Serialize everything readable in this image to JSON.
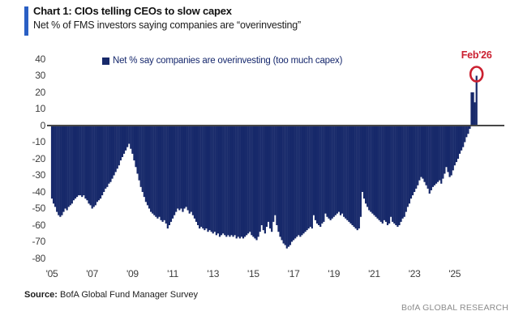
{
  "header": {
    "title": "Chart 1: CIOs telling CEOs to slow capex",
    "subtitle": "Net % of FMS investors saying companies are “overinvesting”"
  },
  "legend": {
    "label": "Net % say companies are overinvesting (too much capex)"
  },
  "annotation": {
    "label": "Feb'26"
  },
  "footer": {
    "source_label": "Source:",
    "source_text": " BofA Global Fund Manager Survey",
    "brand": "BofA GLOBAL RESEARCH"
  },
  "colors": {
    "bar": "#17296a",
    "accent": "#2a5fc4",
    "annotation": "#cb2030",
    "zero_line": "#474747",
    "axis_text": "#3d3d3d"
  },
  "chart_data": {
    "type": "bar",
    "title": "Chart 1: CIOs telling CEOs to slow capex",
    "subtitle": "Net % of FMS investors saying companies are “overinvesting”",
    "series_name": "Net % say companies are overinvesting (too much capex)",
    "frequency": "monthly",
    "start": "2005-01",
    "end": "2026-02",
    "ylim": [
      -80,
      40
    ],
    "grid": false,
    "legend_position": "top",
    "y_ticks": [
      40,
      30,
      20,
      10,
      0,
      -10,
      -20,
      -30,
      -40,
      -50,
      -60,
      -70,
      -80
    ],
    "x_ticks": [
      "'05",
      "'07",
      "'09",
      "'11",
      "'13",
      "'15",
      "'17",
      "'19",
      "'21",
      "'23",
      "'25"
    ],
    "highlight": {
      "label": "Feb'26",
      "month": "2026-02",
      "value": 30
    },
    "values": [
      -44,
      -47,
      -49,
      -52,
      -54,
      -55,
      -54,
      -52,
      -50,
      -51,
      -49,
      -48,
      -47,
      -45,
      -44,
      -43,
      -42,
      -42,
      -43,
      -42,
      -44,
      -45,
      -47,
      -48,
      -50,
      -49,
      -48,
      -46,
      -45,
      -44,
      -42,
      -40,
      -38,
      -37,
      -35,
      -34,
      -32,
      -30,
      -28,
      -26,
      -24,
      -21,
      -19,
      -17,
      -15,
      -13,
      -11,
      -14,
      -17,
      -21,
      -25,
      -29,
      -33,
      -37,
      -40,
      -43,
      -46,
      -48,
      -50,
      -52,
      -53,
      -54,
      -55,
      -56,
      -55,
      -57,
      -58,
      -57,
      -59,
      -62,
      -60,
      -58,
      -56,
      -54,
      -52,
      -50,
      -51,
      -50,
      -52,
      -50,
      -49,
      -51,
      -53,
      -52,
      -54,
      -56,
      -58,
      -60,
      -62,
      -61,
      -62,
      -63,
      -62,
      -64,
      -63,
      -64,
      -65,
      -64,
      -66,
      -65,
      -67,
      -66,
      -65,
      -66,
      -67,
      -66,
      -67,
      -66,
      -67,
      -66,
      -68,
      -67,
      -68,
      -67,
      -68,
      -67,
      -66,
      -65,
      -64,
      -66,
      -67,
      -68,
      -69,
      -67,
      -64,
      -60,
      -63,
      -65,
      -61,
      -58,
      -62,
      -64,
      -58,
      -54,
      -60,
      -64,
      -67,
      -69,
      -71,
      -72,
      -74,
      -73,
      -72,
      -70,
      -69,
      -68,
      -67,
      -66,
      -67,
      -66,
      -65,
      -64,
      -63,
      -62,
      -61,
      -62,
      -54,
      -57,
      -59,
      -60,
      -61,
      -59,
      -58,
      -53,
      -55,
      -56,
      -57,
      -56,
      -55,
      -54,
      -53,
      -52,
      -54,
      -53,
      -55,
      -56,
      -57,
      -58,
      -59,
      -60,
      -61,
      -62,
      -63,
      -62,
      -55,
      -40,
      -44,
      -47,
      -49,
      -51,
      -52,
      -53,
      -54,
      -55,
      -56,
      -57,
      -58,
      -59,
      -57,
      -58,
      -60,
      -59,
      -55,
      -58,
      -59,
      -60,
      -61,
      -60,
      -58,
      -56,
      -55,
      -52,
      -49,
      -47,
      -44,
      -42,
      -40,
      -38,
      -36,
      -33,
      -31,
      -32,
      -34,
      -36,
      -38,
      -41,
      -39,
      -37,
      -36,
      -35,
      -34,
      -33,
      -35,
      -32,
      -29,
      -25,
      -28,
      -31,
      -30,
      -27,
      -24,
      -22,
      -20,
      -17,
      -15,
      -13,
      -10,
      -7,
      -5,
      -2,
      20,
      20,
      14,
      30
    ]
  }
}
